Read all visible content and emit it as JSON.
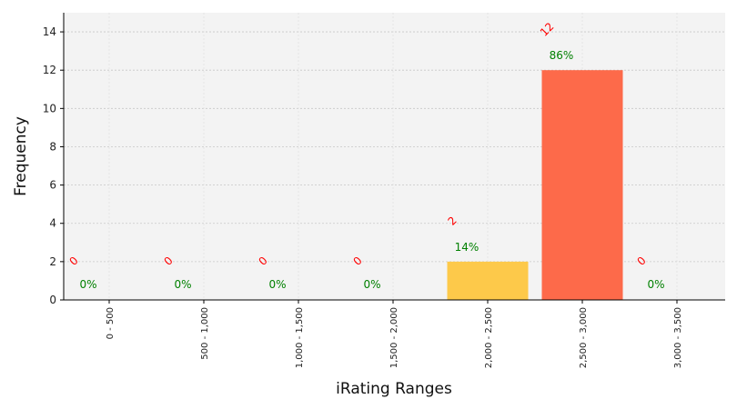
{
  "chart_data": {
    "type": "bar",
    "title": "",
    "xlabel": "iRating Ranges",
    "ylabel": "Frequency",
    "categories": [
      "0 - 500",
      "500 - 1,000",
      "1,000 - 1,500",
      "1,500 - 2,000",
      "2,000 - 2,500",
      "2,500 - 3,000",
      "3,000 - 3,500"
    ],
    "values": [
      0,
      0,
      0,
      0,
      2,
      12,
      0
    ],
    "count_labels": [
      "0",
      "0",
      "0",
      "0",
      "2",
      "12",
      "0"
    ],
    "percent_labels": [
      "0%",
      "0%",
      "0%",
      "0%",
      "14%",
      "86%",
      "0%"
    ],
    "bar_colors": [
      "#ffd700",
      "#ffd700",
      "#ffd700",
      "#ffd700",
      "#fdc94a",
      "#fd6a4a",
      "#ffd700"
    ],
    "ylim": [
      0,
      15
    ],
    "yticks": [
      0,
      2,
      4,
      6,
      8,
      10,
      12,
      14
    ],
    "grid": true,
    "background": "#f3f3f3",
    "count_label_color": "#ff0000",
    "percent_label_color": "#008000"
  }
}
